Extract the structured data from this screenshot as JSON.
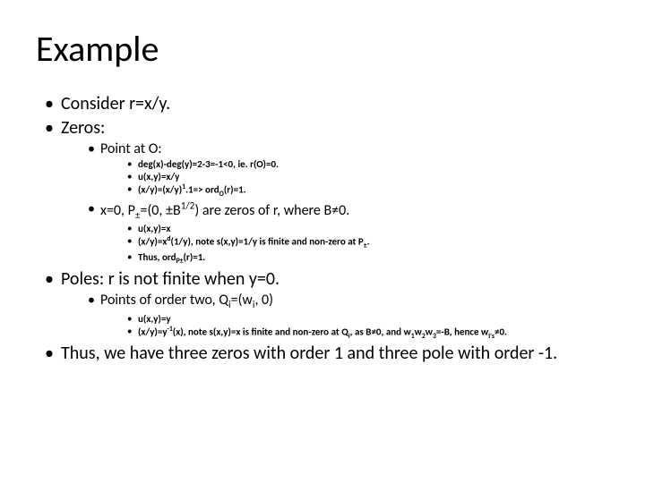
{
  "title": "Example",
  "items": {
    "consider": "Consider r=x/y.",
    "zeros": "Zeros:",
    "pointO": "Point at O:",
    "deg": "deg(x)-deg(y)=2-3=-1<0, ie. r(O)=0.",
    "uxy1": "u(x,y)=x/y",
    "ord1html": "(x/y)=(x/y)<sup>1</sup>.1=> ord<sub>O</sub>(r)=1.",
    "x0html": "x=0, P<sub>±</sub>=(0, ±B<sup>1/2</sup>) are zeros of r, where B≠0.",
    "uxy2": "u(x,y)=x",
    "note1html": "(x/y)=x<sup>d</sup>(1/y), note s(x,y)=1/y is finite and non-zero at P<sub>±</sub>.",
    "thushtml": "Thus, ord<sub>P±</sub>(r)=1.",
    "poles": "Poles: r is not finite when y=0.",
    "pointsQhtml": "Points of order two, Q<sub>i</sub>=(w<sub>i</sub>, 0)",
    "uxy3": "u(x,y)=y",
    "note2html": "(x/y)=y<sup>-1</sup>(x), note s(x,y)=x is finite and non-zero at Q<sub>i</sub>, as B≠0, and  w<sub>1</sub>w<sub>2</sub>w<sub>3</sub>=-B, hence w<sub>i's</sub>≠0.",
    "conclusion": "Thus, we have three zeros with order 1 and three pole with order -1."
  }
}
